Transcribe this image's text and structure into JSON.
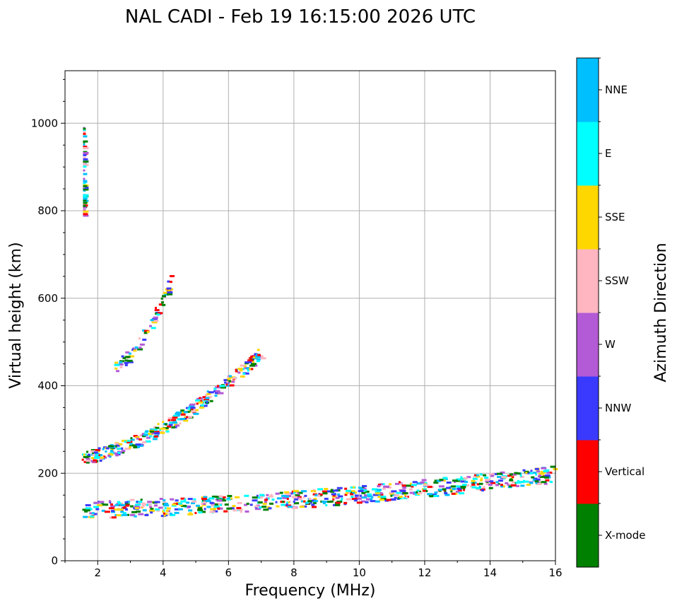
{
  "chart_data": {
    "type": "scatter",
    "title": "NAL CADI - Feb 19 16:15:00 2026 UTC",
    "xlabel": "Frequency (MHz)",
    "ylabel": "Virtual height (km)",
    "xlim": [
      1,
      16
    ],
    "ylim": [
      0,
      1120
    ],
    "xticks": [
      2,
      4,
      6,
      8,
      10,
      12,
      14,
      16
    ],
    "yticks": [
      0,
      200,
      400,
      600,
      800,
      1000
    ],
    "grid": true,
    "colorbar": {
      "label": "Azimuth Direction",
      "categories": [
        {
          "name": "X-mode",
          "color": "#008000"
        },
        {
          "name": "Vertical",
          "color": "#ff0000"
        },
        {
          "name": "NNW",
          "color": "#3a3aff"
        },
        {
          "name": "W",
          "color": "#b35ad6"
        },
        {
          "name": "SSW",
          "color": "#ffb6c1"
        },
        {
          "name": "SSE",
          "color": "#ffd700"
        },
        {
          "name": "E",
          "color": "#00ffff"
        },
        {
          "name": "NNE",
          "color": "#00bfff"
        }
      ]
    },
    "traces": [
      {
        "name": "E-layer trace",
        "f": [
          1.5,
          16.0
        ],
        "h": [
          120,
          200
        ],
        "density": "high"
      },
      {
        "name": "F-layer trace",
        "f": [
          1.5,
          7.0
        ],
        "h": [
          240,
          480
        ],
        "density": "medium"
      },
      {
        "name": "second-hop F trace",
        "f": [
          2.5,
          4.2
        ],
        "h": [
          450,
          640
        ],
        "density": "low"
      },
      {
        "name": "vertical streak",
        "f": [
          1.55,
          1.55
        ],
        "h": [
          800,
          1000
        ],
        "density": "low"
      }
    ]
  }
}
